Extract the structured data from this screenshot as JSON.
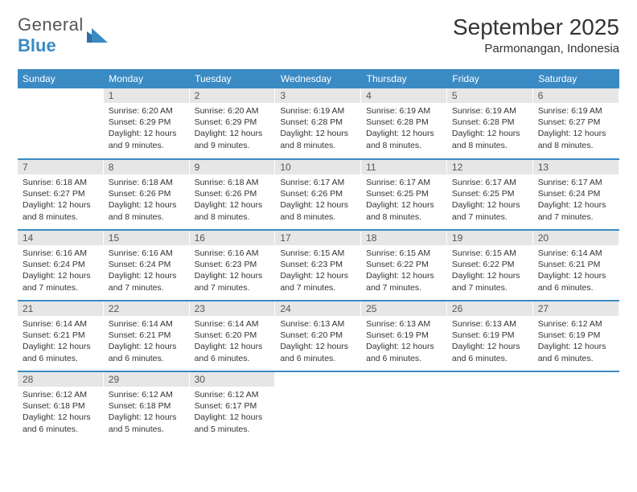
{
  "logo": {
    "text1": "General",
    "text2": "Blue"
  },
  "title": "September 2025",
  "location": "Parmonangan, Indonesia",
  "colors": {
    "header_bg": "#3a8ac4",
    "daynum_bg": "#e6e6e6",
    "border": "#3a8ac4",
    "text": "#333333"
  },
  "day_headers": [
    "Sunday",
    "Monday",
    "Tuesday",
    "Wednesday",
    "Thursday",
    "Friday",
    "Saturday"
  ],
  "weeks": [
    [
      {
        "daynum": "",
        "sunrise": "",
        "sunset": "",
        "daylight": ""
      },
      {
        "daynum": "1",
        "sunrise": "Sunrise: 6:20 AM",
        "sunset": "Sunset: 6:29 PM",
        "daylight": "Daylight: 12 hours and 9 minutes."
      },
      {
        "daynum": "2",
        "sunrise": "Sunrise: 6:20 AM",
        "sunset": "Sunset: 6:29 PM",
        "daylight": "Daylight: 12 hours and 9 minutes."
      },
      {
        "daynum": "3",
        "sunrise": "Sunrise: 6:19 AM",
        "sunset": "Sunset: 6:28 PM",
        "daylight": "Daylight: 12 hours and 8 minutes."
      },
      {
        "daynum": "4",
        "sunrise": "Sunrise: 6:19 AM",
        "sunset": "Sunset: 6:28 PM",
        "daylight": "Daylight: 12 hours and 8 minutes."
      },
      {
        "daynum": "5",
        "sunrise": "Sunrise: 6:19 AM",
        "sunset": "Sunset: 6:28 PM",
        "daylight": "Daylight: 12 hours and 8 minutes."
      },
      {
        "daynum": "6",
        "sunrise": "Sunrise: 6:19 AM",
        "sunset": "Sunset: 6:27 PM",
        "daylight": "Daylight: 12 hours and 8 minutes."
      }
    ],
    [
      {
        "daynum": "7",
        "sunrise": "Sunrise: 6:18 AM",
        "sunset": "Sunset: 6:27 PM",
        "daylight": "Daylight: 12 hours and 8 minutes."
      },
      {
        "daynum": "8",
        "sunrise": "Sunrise: 6:18 AM",
        "sunset": "Sunset: 6:26 PM",
        "daylight": "Daylight: 12 hours and 8 minutes."
      },
      {
        "daynum": "9",
        "sunrise": "Sunrise: 6:18 AM",
        "sunset": "Sunset: 6:26 PM",
        "daylight": "Daylight: 12 hours and 8 minutes."
      },
      {
        "daynum": "10",
        "sunrise": "Sunrise: 6:17 AM",
        "sunset": "Sunset: 6:26 PM",
        "daylight": "Daylight: 12 hours and 8 minutes."
      },
      {
        "daynum": "11",
        "sunrise": "Sunrise: 6:17 AM",
        "sunset": "Sunset: 6:25 PM",
        "daylight": "Daylight: 12 hours and 8 minutes."
      },
      {
        "daynum": "12",
        "sunrise": "Sunrise: 6:17 AM",
        "sunset": "Sunset: 6:25 PM",
        "daylight": "Daylight: 12 hours and 7 minutes."
      },
      {
        "daynum": "13",
        "sunrise": "Sunrise: 6:17 AM",
        "sunset": "Sunset: 6:24 PM",
        "daylight": "Daylight: 12 hours and 7 minutes."
      }
    ],
    [
      {
        "daynum": "14",
        "sunrise": "Sunrise: 6:16 AM",
        "sunset": "Sunset: 6:24 PM",
        "daylight": "Daylight: 12 hours and 7 minutes."
      },
      {
        "daynum": "15",
        "sunrise": "Sunrise: 6:16 AM",
        "sunset": "Sunset: 6:24 PM",
        "daylight": "Daylight: 12 hours and 7 minutes."
      },
      {
        "daynum": "16",
        "sunrise": "Sunrise: 6:16 AM",
        "sunset": "Sunset: 6:23 PM",
        "daylight": "Daylight: 12 hours and 7 minutes."
      },
      {
        "daynum": "17",
        "sunrise": "Sunrise: 6:15 AM",
        "sunset": "Sunset: 6:23 PM",
        "daylight": "Daylight: 12 hours and 7 minutes."
      },
      {
        "daynum": "18",
        "sunrise": "Sunrise: 6:15 AM",
        "sunset": "Sunset: 6:22 PM",
        "daylight": "Daylight: 12 hours and 7 minutes."
      },
      {
        "daynum": "19",
        "sunrise": "Sunrise: 6:15 AM",
        "sunset": "Sunset: 6:22 PM",
        "daylight": "Daylight: 12 hours and 7 minutes."
      },
      {
        "daynum": "20",
        "sunrise": "Sunrise: 6:14 AM",
        "sunset": "Sunset: 6:21 PM",
        "daylight": "Daylight: 12 hours and 6 minutes."
      }
    ],
    [
      {
        "daynum": "21",
        "sunrise": "Sunrise: 6:14 AM",
        "sunset": "Sunset: 6:21 PM",
        "daylight": "Daylight: 12 hours and 6 minutes."
      },
      {
        "daynum": "22",
        "sunrise": "Sunrise: 6:14 AM",
        "sunset": "Sunset: 6:21 PM",
        "daylight": "Daylight: 12 hours and 6 minutes."
      },
      {
        "daynum": "23",
        "sunrise": "Sunrise: 6:14 AM",
        "sunset": "Sunset: 6:20 PM",
        "daylight": "Daylight: 12 hours and 6 minutes."
      },
      {
        "daynum": "24",
        "sunrise": "Sunrise: 6:13 AM",
        "sunset": "Sunset: 6:20 PM",
        "daylight": "Daylight: 12 hours and 6 minutes."
      },
      {
        "daynum": "25",
        "sunrise": "Sunrise: 6:13 AM",
        "sunset": "Sunset: 6:19 PM",
        "daylight": "Daylight: 12 hours and 6 minutes."
      },
      {
        "daynum": "26",
        "sunrise": "Sunrise: 6:13 AM",
        "sunset": "Sunset: 6:19 PM",
        "daylight": "Daylight: 12 hours and 6 minutes."
      },
      {
        "daynum": "27",
        "sunrise": "Sunrise: 6:12 AM",
        "sunset": "Sunset: 6:19 PM",
        "daylight": "Daylight: 12 hours and 6 minutes."
      }
    ],
    [
      {
        "daynum": "28",
        "sunrise": "Sunrise: 6:12 AM",
        "sunset": "Sunset: 6:18 PM",
        "daylight": "Daylight: 12 hours and 6 minutes."
      },
      {
        "daynum": "29",
        "sunrise": "Sunrise: 6:12 AM",
        "sunset": "Sunset: 6:18 PM",
        "daylight": "Daylight: 12 hours and 5 minutes."
      },
      {
        "daynum": "30",
        "sunrise": "Sunrise: 6:12 AM",
        "sunset": "Sunset: 6:17 PM",
        "daylight": "Daylight: 12 hours and 5 minutes."
      },
      {
        "daynum": "",
        "sunrise": "",
        "sunset": "",
        "daylight": ""
      },
      {
        "daynum": "",
        "sunrise": "",
        "sunset": "",
        "daylight": ""
      },
      {
        "daynum": "",
        "sunrise": "",
        "sunset": "",
        "daylight": ""
      },
      {
        "daynum": "",
        "sunrise": "",
        "sunset": "",
        "daylight": ""
      }
    ]
  ]
}
